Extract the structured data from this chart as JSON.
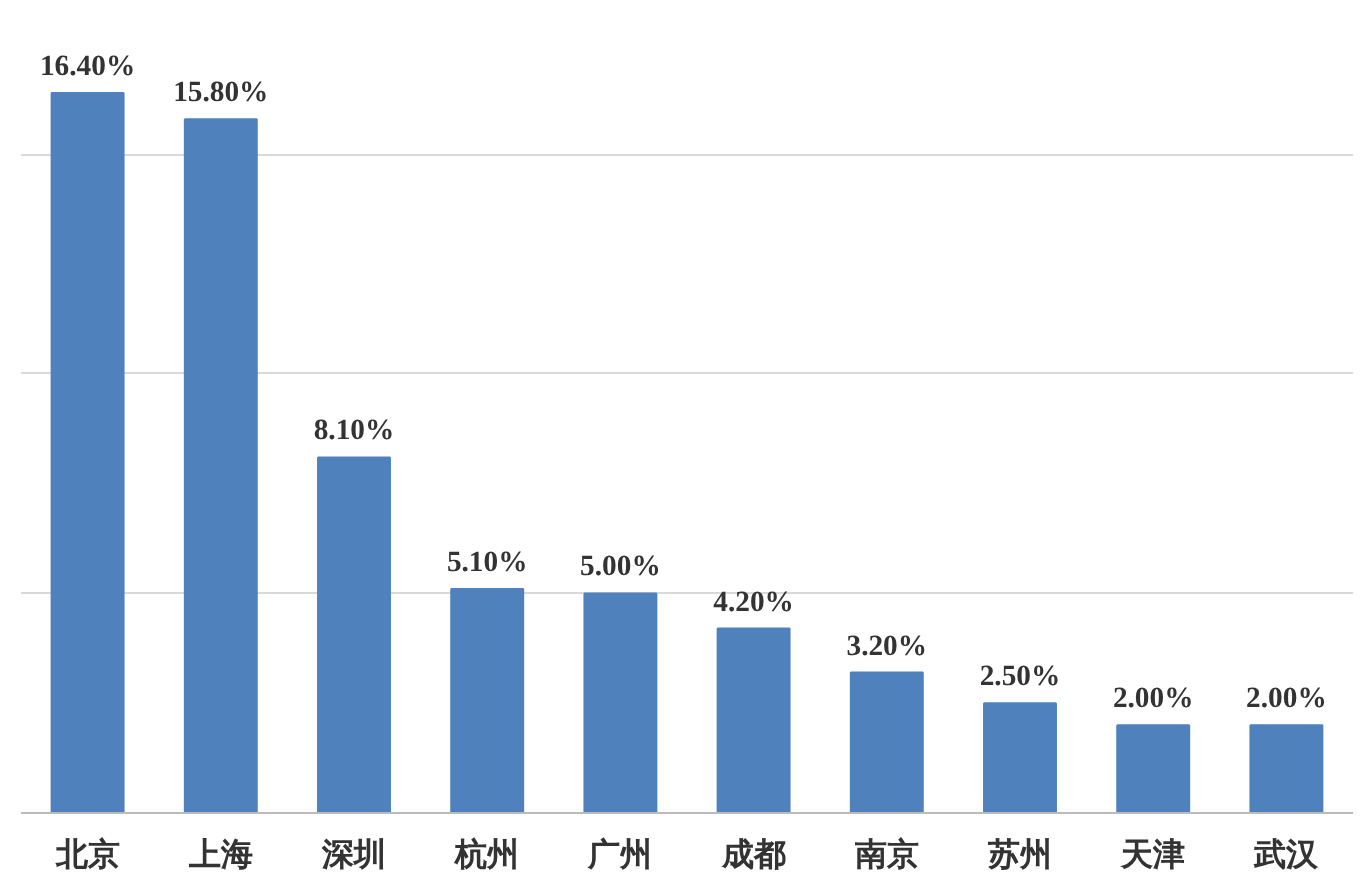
{
  "chart_data": {
    "type": "bar",
    "categories": [
      "北京",
      "上海",
      "深圳",
      "杭州",
      "广州",
      "成都",
      "南京",
      "苏州",
      "天津",
      "武汉"
    ],
    "values": [
      16.4,
      15.8,
      8.1,
      5.1,
      5.0,
      4.2,
      3.2,
      2.5,
      2.0,
      2.0
    ],
    "value_labels": [
      "16.40%",
      "15.80%",
      "8.10%",
      "5.10%",
      "5.00%",
      "4.20%",
      "3.20%",
      "2.50%",
      "2.00%",
      "2.00%"
    ],
    "color": "#4f81bd",
    "grid": "y",
    "tick_labels": "x"
  }
}
